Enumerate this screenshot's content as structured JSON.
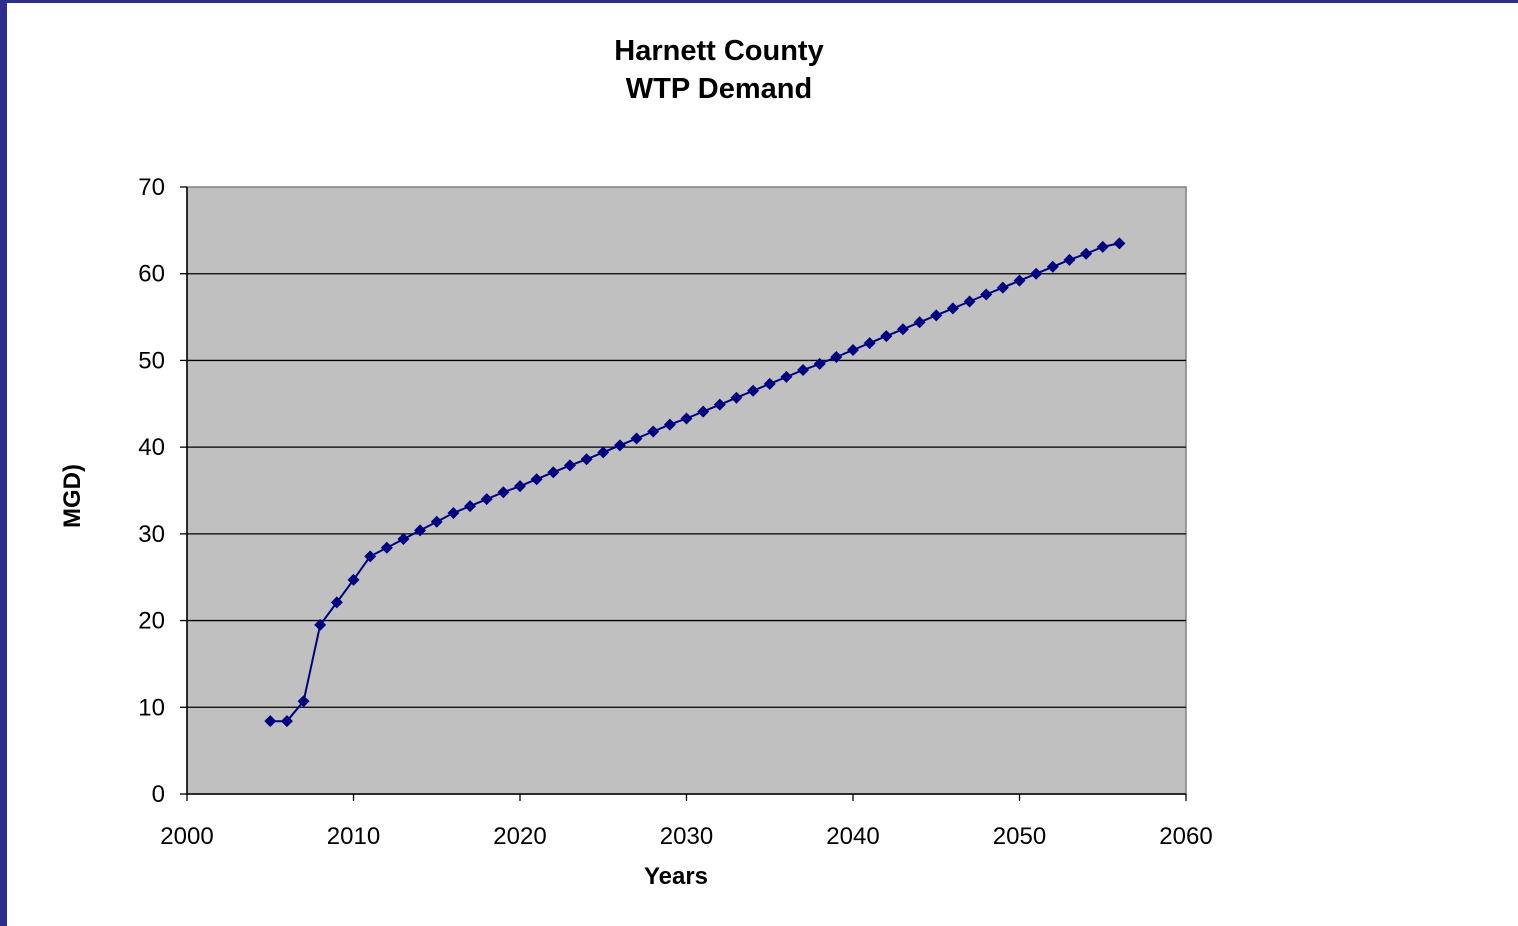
{
  "chart_data": {
    "type": "line",
    "title_lines": [
      "Harnett County",
      "WTP Demand"
    ],
    "xlabel": "Years",
    "ylabel": "MGD)",
    "xlim": [
      2000,
      2060
    ],
    "ylim": [
      0,
      70
    ],
    "x_ticks": [
      "2000",
      "2010",
      "2020",
      "2030",
      "2040",
      "2050",
      "2060"
    ],
    "y_ticks": [
      "0",
      "10",
      "20",
      "30",
      "40",
      "50",
      "60",
      "70"
    ],
    "grid": true,
    "legend": "none",
    "plot_background": "#c0c0c0",
    "series_color": "#000080",
    "series": [
      {
        "marker": "diamond",
        "x": [
          2005,
          2006,
          2007,
          2008,
          2009,
          2010,
          2011,
          2012,
          2013,
          2014,
          2015,
          2016,
          2017,
          2018,
          2019,
          2020,
          2021,
          2022,
          2023,
          2024,
          2025,
          2026,
          2027,
          2028,
          2029,
          2030,
          2031,
          2032,
          2033,
          2034,
          2035,
          2036,
          2037,
          2038,
          2039,
          2040,
          2041,
          2042,
          2043,
          2044,
          2045,
          2046,
          2047,
          2048,
          2049,
          2050,
          2051,
          2052,
          2053,
          2054,
          2055,
          2056
        ],
        "y": [
          8.4,
          8.4,
          10.7,
          19.5,
          22.1,
          24.7,
          27.4,
          28.4,
          29.4,
          30.4,
          31.4,
          32.4,
          33.2,
          34.0,
          34.8,
          35.5,
          36.3,
          37.1,
          37.9,
          38.6,
          39.4,
          40.2,
          41.0,
          41.8,
          42.6,
          43.3,
          44.1,
          44.9,
          45.7,
          46.5,
          47.3,
          48.1,
          48.9,
          49.6,
          50.4,
          51.2,
          52.0,
          52.8,
          53.6,
          54.4,
          55.2,
          56.0,
          56.8,
          57.6,
          58.4,
          59.2,
          60.0,
          60.8,
          61.6,
          62.3,
          63.1,
          63.5
        ]
      }
    ]
  }
}
